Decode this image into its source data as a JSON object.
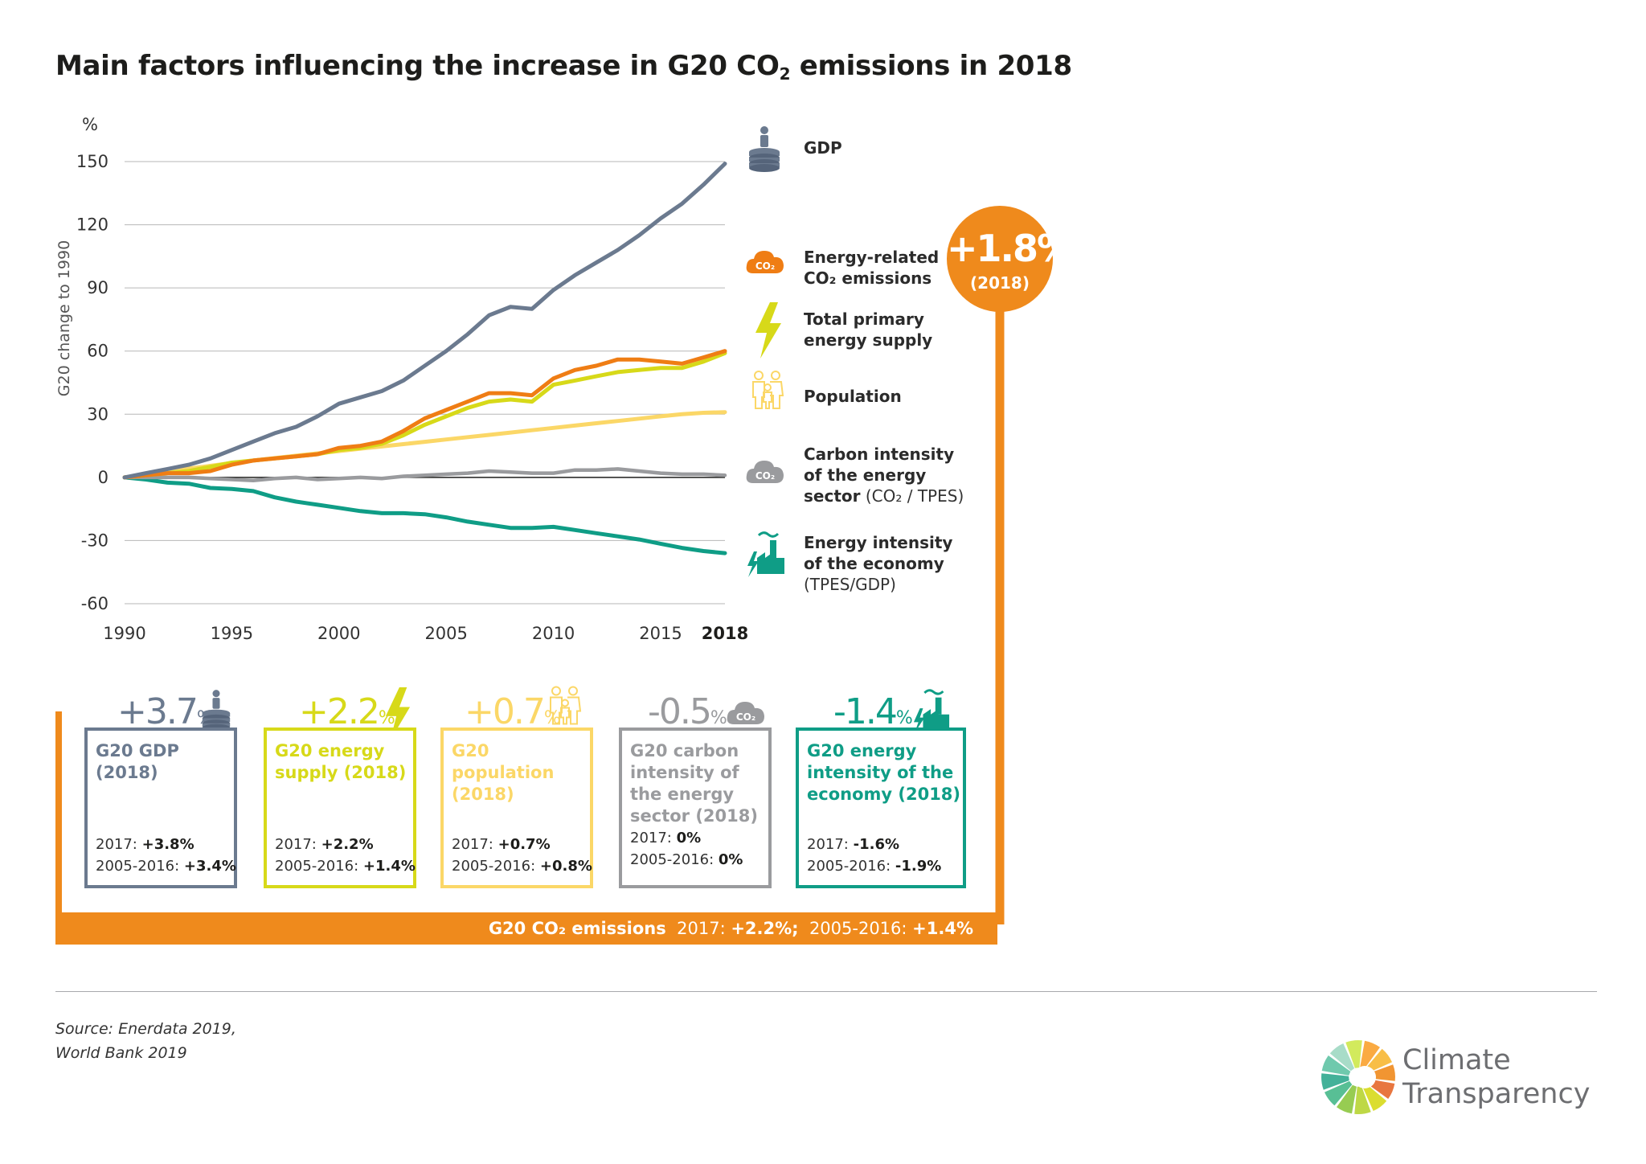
{
  "title": "Main factors influencing the increase in G20 CO",
  "title_sub": "2",
  "title_tail": " emissions in 2018",
  "headline": {
    "value": "+1.8%",
    "year": "(2018)"
  },
  "legend": [
    {
      "key": "gdp",
      "label": "GDP",
      "extra": "",
      "icon": "gdp-coins-person-icon"
    },
    {
      "key": "emissions",
      "label": "Energy-related\nCO₂ emissions",
      "extra": "",
      "icon": "co2-cloud-icon"
    },
    {
      "key": "tpes",
      "label": "Total primary\nenergy supply",
      "extra": "",
      "icon": "lightning-bolt-icon"
    },
    {
      "key": "population",
      "label": "Population",
      "extra": "",
      "icon": "family-icon"
    },
    {
      "key": "carbon",
      "label": "Carbon intensity\nof the energy\nsector",
      "extra": " (CO₂ / TPES)",
      "icon": "co2-cloud-icon"
    },
    {
      "key": "energy_intensity",
      "label": "Energy intensity\nof the economy",
      "extra": "(TPES/GDP)",
      "icon": "factory-icon"
    }
  ],
  "panels": [
    {
      "key": "gdp",
      "big": "+3.7",
      "unit": "%",
      "title": "G20 GDP\n(2018)",
      "y2017_label": "2017: ",
      "y2017": "+3.8%",
      "range_label": "2005-2016: ",
      "range": "+3.4%",
      "icon": "gdp-coins-person-icon"
    },
    {
      "key": "tpes",
      "big": "+2.2",
      "unit": "%",
      "title": "G20 energy\nsupply (2018)",
      "y2017_label": "2017: ",
      "y2017": "+2.2%",
      "range_label": "2005-2016: ",
      "range": "+1.4%",
      "icon": "lightning-bolt-icon"
    },
    {
      "key": "population",
      "big": "+0.7",
      "unit": "%",
      "title": "G20\npopulation\n(2018)",
      "y2017_label": "2017: ",
      "y2017": "+0.7%",
      "range_label": "2005-2016: ",
      "range": "+0.8%",
      "icon": "family-icon"
    },
    {
      "key": "carbon",
      "big": "-0.5",
      "unit": "%",
      "title": "G20 carbon\nintensity of\nthe energy\nsector (2018)",
      "y2017_label": "2017: ",
      "y2017": "0%",
      "range_label": "2005-2016: ",
      "range": "0%",
      "icon": "co2-cloud-icon"
    },
    {
      "key": "energy_intensity",
      "big": "-1.4",
      "unit": "%",
      "title": "G20 energy\nintensity of the\neconomy (2018)",
      "y2017_label": "2017: ",
      "y2017": "-1.6%",
      "range_label": "2005-2016: ",
      "range": "-1.9%",
      "icon": "factory-icon"
    }
  ],
  "footer": {
    "label": "G20 CO₂ emissions",
    "y2017_label": "2017: ",
    "y2017": "+2.2%;",
    "range_label": "2005-2016: ",
    "range": "+1.4%"
  },
  "source": [
    "Source: Enerdata 2019,",
    "World Bank 2019"
  ],
  "logo": {
    "line1": "Climate",
    "line2": "Transparency"
  },
  "colors": {
    "gdp": "#6b7a8f",
    "emissions": "#ef7d14",
    "tpes": "#d7d919",
    "population": "#fbd767",
    "carbon": "#9a9b9e",
    "energy_intensity": "#0f9d86",
    "accent": "#ef8a1c"
  },
  "chart_data": {
    "type": "line",
    "ylabel": "G20 change to 1990",
    "yunit": "%",
    "ylim": [
      -60,
      150
    ],
    "yticks": [
      150,
      120,
      90,
      60,
      30,
      0,
      -30,
      -60
    ],
    "xlim": [
      1990,
      2018
    ],
    "xticks": [
      1990,
      1995,
      2000,
      2005,
      2010,
      2015,
      2018
    ],
    "grid": true,
    "x": [
      1990,
      1991,
      1992,
      1993,
      1994,
      1995,
      1996,
      1997,
      1998,
      1999,
      2000,
      2001,
      2002,
      2003,
      2004,
      2005,
      2006,
      2007,
      2008,
      2009,
      2010,
      2011,
      2012,
      2013,
      2014,
      2015,
      2016,
      2017,
      2018
    ],
    "series": [
      {
        "name": "GDP",
        "key": "gdp",
        "values": [
          0,
          2,
          4,
          6,
          9,
          13,
          17,
          21,
          24,
          29,
          35,
          38,
          41,
          46,
          53,
          60,
          68,
          77,
          81,
          80,
          89,
          96,
          102,
          108,
          115,
          123,
          130,
          139,
          149
        ]
      },
      {
        "name": "Energy-related CO₂ emissions",
        "key": "emissions",
        "values": [
          0,
          1,
          2,
          2,
          3,
          6,
          8,
          9,
          10,
          11,
          14,
          15,
          17,
          22,
          28,
          32,
          36,
          40,
          40,
          39,
          47,
          51,
          53,
          56,
          56,
          55,
          54,
          57,
          60
        ]
      },
      {
        "name": "Total primary energy supply",
        "key": "tpes",
        "values": [
          0,
          1,
          2,
          3,
          5,
          7,
          8,
          9,
          10,
          11,
          13,
          14,
          16,
          20,
          25,
          29,
          33,
          36,
          37,
          36,
          44,
          46,
          48,
          50,
          51,
          52,
          52,
          55,
          59
        ]
      },
      {
        "name": "Population",
        "key": "population",
        "values": [
          0,
          1.4,
          2.8,
          4.2,
          5.5,
          6.8,
          8,
          9.2,
          10.3,
          11.4,
          12.5,
          13.6,
          14.7,
          15.8,
          16.9,
          18,
          19.1,
          20.2,
          21.3,
          22.4,
          23.5,
          24.6,
          25.7,
          26.8,
          27.9,
          29,
          30,
          30.7,
          31
        ]
      },
      {
        "name": "Carbon intensity of the energy sector",
        "key": "carbon",
        "values": [
          0,
          0,
          0,
          0,
          -0.5,
          -1,
          -1.5,
          -0.5,
          0,
          -1,
          -0.5,
          0,
          -0.5,
          0.5,
          1,
          1.5,
          2,
          3,
          2.5,
          2,
          2,
          3.5,
          3.5,
          4,
          3,
          2,
          1.5,
          1.5,
          1
        ]
      },
      {
        "name": "Energy intensity of the economy",
        "key": "energy_intensity",
        "values": [
          0,
          -1,
          -2.5,
          -3,
          -5,
          -5.5,
          -6.5,
          -9.5,
          -11.5,
          -13,
          -14.5,
          -16,
          -17,
          -17,
          -17.5,
          -19,
          -21,
          -22.5,
          -24,
          -24,
          -23.5,
          -25,
          -26.5,
          -28,
          -29.5,
          -31.5,
          -33.5,
          -35,
          -36
        ]
      }
    ]
  }
}
